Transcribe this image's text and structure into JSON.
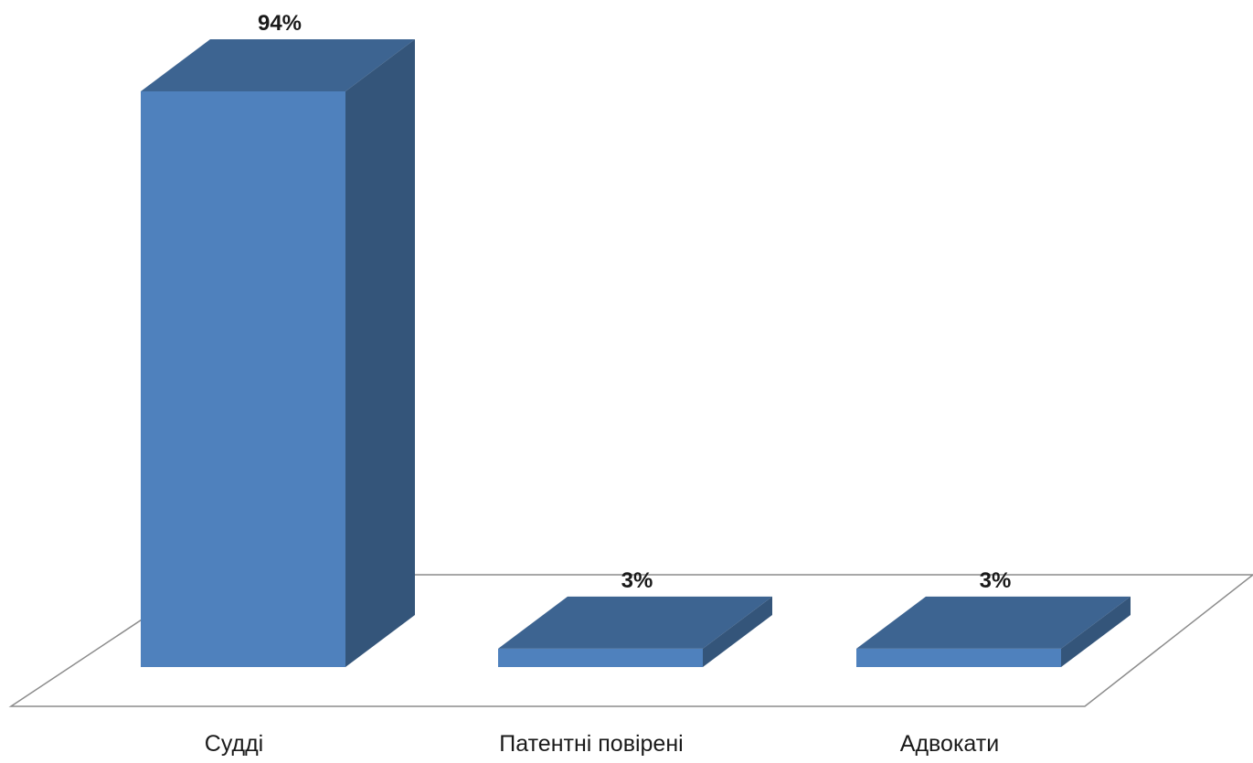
{
  "chart_data": {
    "type": "bar",
    "style": "3d-column",
    "categories": [
      "Судді",
      "Патентні повірені",
      "Адвокати"
    ],
    "values": [
      94,
      3,
      3
    ],
    "data_labels": [
      "94%",
      "3%",
      "3%"
    ],
    "unit": "%",
    "title": "",
    "xlabel": "",
    "ylabel": "",
    "ylim": [
      0,
      100
    ],
    "grid": false,
    "legend": "none",
    "colors": {
      "front": "#4f81bd",
      "top": "#3d6491",
      "side": "#34557a",
      "floor_edge": "#8c8c8c"
    }
  }
}
